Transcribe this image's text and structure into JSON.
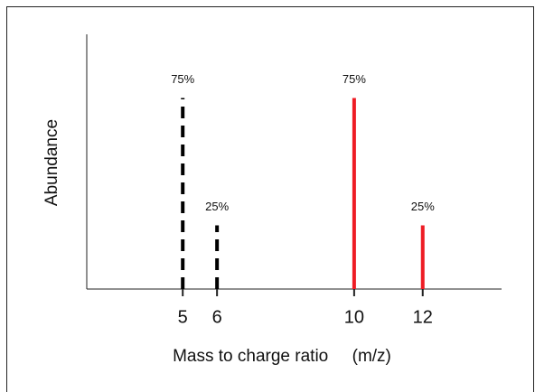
{
  "chart_data": {
    "type": "stick",
    "xlabel": "Mass to charge ratio     (m/z)",
    "ylabel": "Abundance",
    "xlim": [
      2.2,
      14.3
    ],
    "xticks": [
      5,
      6,
      10,
      12
    ],
    "ylim": [
      0,
      100
    ],
    "series": [
      {
        "x": [
          5,
          6
        ],
        "values": [
          75,
          25
        ],
        "value_labels": [
          "75%",
          "25%"
        ],
        "color": "#000000",
        "dashed": true
      },
      {
        "x": [
          10,
          12
        ],
        "values": [
          75,
          25
        ],
        "value_labels": [
          "75%",
          "25%"
        ],
        "color": "#ee1c24",
        "dashed": false
      }
    ]
  }
}
